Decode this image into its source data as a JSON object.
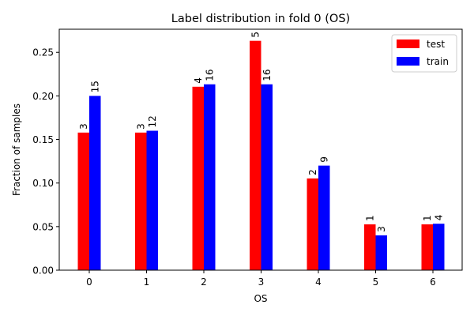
{
  "chart_data": {
    "type": "bar",
    "title": "Label distribution in fold 0 (OS)",
    "xlabel": "OS",
    "ylabel": "Fraction of samples",
    "categories": [
      "0",
      "1",
      "2",
      "3",
      "4",
      "5",
      "6"
    ],
    "ylim": [
      0,
      0.2765
    ],
    "yticks": [
      "0.00",
      "0.05",
      "0.10",
      "0.15",
      "0.20",
      "0.25"
    ],
    "grid": false,
    "legend_position": "top-right",
    "series": [
      {
        "name": "test",
        "color": "#ff0000",
        "values": [
          0.1579,
          0.1579,
          0.2105,
          0.2632,
          0.1053,
          0.0526,
          0.0526
        ],
        "labels": [
          "3",
          "3",
          "4",
          "5",
          "2",
          "1",
          "1"
        ]
      },
      {
        "name": "train",
        "color": "#0000ff",
        "values": [
          0.2,
          0.16,
          0.2133,
          0.2133,
          0.12,
          0.04,
          0.0533
        ],
        "labels": [
          "15",
          "12",
          "16",
          "16",
          "9",
          "3",
          "4"
        ]
      }
    ]
  }
}
